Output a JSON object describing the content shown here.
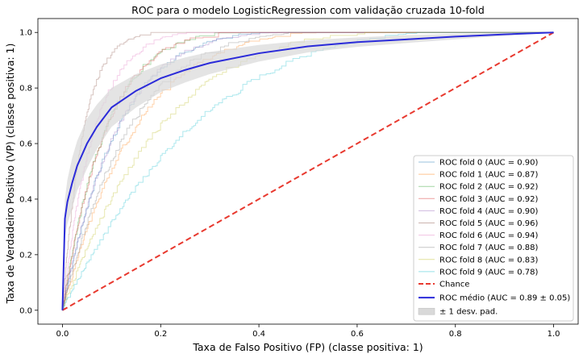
{
  "chart_data": {
    "type": "line",
    "title": "ROC para o modelo LogisticRegression com validação cruzada 10-fold",
    "xlabel": "Taxa de Falso Positivo (FP) (classe positiva: 1)",
    "ylabel": "Taxa de Verdadeiro Positivo (VP) (classe positiva: 1)",
    "xlim": [
      -0.05,
      1.05
    ],
    "ylim": [
      -0.05,
      1.05
    ],
    "xticks": [
      "0.0",
      "0.2",
      "0.4",
      "0.6",
      "0.8",
      "1.0"
    ],
    "yticks": [
      "0.0",
      "0.2",
      "0.4",
      "0.6",
      "0.8",
      "1.0"
    ],
    "grid": false,
    "legend_position": "lower-right",
    "folds": [
      {
        "label": "ROC fold 0 (AUC = 0.90)",
        "color": "#1f77b4",
        "auc": 0.9
      },
      {
        "label": "ROC fold 1 (AUC = 0.87)",
        "color": "#ff7f0e",
        "auc": 0.87
      },
      {
        "label": "ROC fold 2 (AUC = 0.92)",
        "color": "#2ca02c",
        "auc": 0.92
      },
      {
        "label": "ROC fold 3 (AUC = 0.92)",
        "color": "#d62728",
        "auc": 0.92
      },
      {
        "label": "ROC fold 4 (AUC = 0.90)",
        "color": "#9467bd",
        "auc": 0.9
      },
      {
        "label": "ROC fold 5 (AUC = 0.96)",
        "color": "#8c564b",
        "auc": 0.96
      },
      {
        "label": "ROC fold 6 (AUC = 0.94)",
        "color": "#e377c2",
        "auc": 0.94
      },
      {
        "label": "ROC fold 7 (AUC = 0.88)",
        "color": "#7f7f7f",
        "auc": 0.88
      },
      {
        "label": "ROC fold 8 (AUC = 0.83)",
        "color": "#bcbd22",
        "auc": 0.83
      },
      {
        "label": "ROC fold 9 (AUC = 0.78)",
        "color": "#17becf",
        "auc": 0.78
      }
    ],
    "chance": {
      "label": "Chance",
      "color": "#e8392f",
      "x": [
        0,
        1
      ],
      "y": [
        0,
        1
      ]
    },
    "mean": {
      "label": "ROC médio (AUC = 0.89 ± 0.05)",
      "color": "#2b2bd9",
      "x": [
        0,
        0.005,
        0.01,
        0.02,
        0.03,
        0.05,
        0.07,
        0.1,
        0.15,
        0.2,
        0.25,
        0.3,
        0.4,
        0.5,
        0.6,
        0.7,
        0.8,
        0.9,
        1.0
      ],
      "y": [
        0,
        0.33,
        0.39,
        0.46,
        0.52,
        0.6,
        0.66,
        0.73,
        0.79,
        0.835,
        0.865,
        0.89,
        0.925,
        0.95,
        0.965,
        0.975,
        0.985,
        0.993,
        1.0
      ]
    },
    "std_band": {
      "label": "± 1 desv. pad.",
      "color": "#d9d9d9",
      "upper": [
        0,
        0.4,
        0.47,
        0.55,
        0.61,
        0.69,
        0.74,
        0.8,
        0.85,
        0.885,
        0.91,
        0.93,
        0.955,
        0.972,
        0.982,
        0.99,
        0.995,
        0.998,
        1.0
      ],
      "lower": [
        0,
        0.26,
        0.31,
        0.37,
        0.43,
        0.51,
        0.58,
        0.66,
        0.73,
        0.785,
        0.82,
        0.85,
        0.895,
        0.928,
        0.948,
        0.962,
        0.975,
        0.988,
        1.0
      ]
    }
  }
}
